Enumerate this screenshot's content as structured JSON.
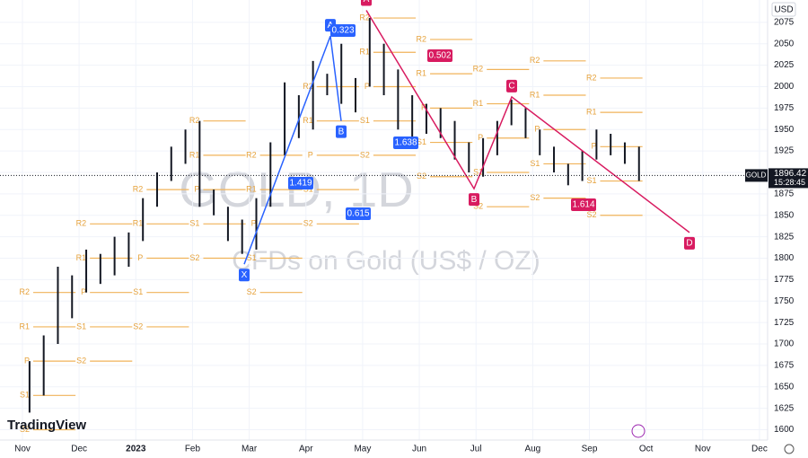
{
  "chart_data": {
    "type": "ohlc",
    "watermark": "GOLD, 1D",
    "watermark_subtitle": "CFDs on Gold (US$ / OZ)",
    "brand": "TradingView",
    "currency": "USD",
    "symbol": "GOLD",
    "last_price": 1896.42,
    "countdown": "15:28:45",
    "categories": [
      "Nov",
      "Dec",
      "2023",
      "Feb",
      "Mar",
      "Apr",
      "May",
      "Jun",
      "Jul",
      "Aug",
      "Sep",
      "Oct",
      "Nov",
      "Dec"
    ],
    "ylim": [
      1588,
      2101
    ],
    "yticks": [
      1600,
      1625,
      1650,
      1675,
      1700,
      1725,
      1750,
      1775,
      1800,
      1825,
      1850,
      1875,
      1900,
      1925,
      1950,
      1975,
      2000,
      2025,
      2050,
      2075
    ],
    "grid": true,
    "series": [
      {
        "name": "GOLD",
        "color": "#131722",
        "high": [
          1680,
          1710,
          1790,
          1780,
          1810,
          1805,
          1825,
          1830,
          1870,
          1900,
          1930,
          1950,
          1960,
          1880,
          1860,
          1845,
          1870,
          1935,
          2005,
          1990,
          2030,
          2015,
          2050,
          2010,
          2080,
          2050,
          2020,
          1990,
          1980,
          1975,
          1960,
          1935,
          1940,
          1960,
          1985,
          1975,
          1950,
          1930,
          1910,
          1925,
          1950,
          1945,
          1935,
          1930
        ],
        "low": [
          1620,
          1640,
          1700,
          1730,
          1760,
          1770,
          1780,
          1790,
          1820,
          1860,
          1890,
          1910,
          1860,
          1850,
          1820,
          1805,
          1810,
          1860,
          1920,
          1940,
          1950,
          1990,
          1980,
          1970,
          2000,
          1990,
          1950,
          1940,
          1945,
          1940,
          1915,
          1900,
          1895,
          1920,
          1955,
          1940,
          1920,
          1900,
          1885,
          1890,
          1915,
          1920,
          1910,
          1890
        ]
      }
    ],
    "pivots": [
      {
        "labels": [
          "R2",
          "R1",
          "P",
          "S1",
          "S2"
        ],
        "values": [
          1760,
          1720,
          1680,
          1640,
          1600
        ]
      },
      {
        "labels": [
          "R2",
          "R1",
          "P",
          "S1",
          "S2"
        ],
        "values": [
          1840,
          1800,
          1760,
          1720,
          1680
        ]
      },
      {
        "labels": [
          "R2",
          "R1",
          "P",
          "S1",
          "S2"
        ],
        "values": [
          1880,
          1840,
          1800,
          1760,
          1720
        ]
      },
      {
        "labels": [
          "R2",
          "R1",
          "P",
          "S1",
          "S2"
        ],
        "values": [
          1960,
          1920,
          1880,
          1840,
          1800
        ]
      },
      {
        "labels": [
          "R2",
          "R1",
          "P",
          "S1",
          "S2"
        ],
        "values": [
          1920,
          1880,
          1840,
          1800,
          1760
        ]
      },
      {
        "labels": [
          "R2",
          "R1",
          "P",
          "S1",
          "S2"
        ],
        "values": [
          2000,
          1960,
          1920,
          1880,
          1840
        ]
      },
      {
        "labels": [
          "R2",
          "R1",
          "P",
          "S1",
          "S2"
        ],
        "values": [
          2080,
          2040,
          2000,
          1960,
          1920
        ]
      },
      {
        "labels": [
          "R2",
          "R1",
          "P",
          "S1",
          "S2"
        ],
        "values": [
          2055,
          2015,
          1975,
          1935,
          1895
        ]
      },
      {
        "labels": [
          "R2",
          "R1",
          "P",
          "S1",
          "S2"
        ],
        "values": [
          2020,
          1980,
          1940,
          1900,
          1860
        ]
      },
      {
        "labels": [
          "R2",
          "R1",
          "P",
          "S1",
          "S2"
        ],
        "values": [
          2030,
          1990,
          1950,
          1910,
          1870
        ]
      },
      {
        "labels": [
          "R2",
          "R1",
          "P",
          "S1",
          "S2"
        ],
        "values": [
          2010,
          1970,
          1930,
          1890,
          1850
        ]
      }
    ],
    "patterns": [
      {
        "color": "#2962ff",
        "labels": [
          "X",
          "A",
          "B"
        ],
        "values": [
          1793,
          2059,
          1960
        ],
        "ratios": [
          "1.419",
          "0.323",
          "0.615",
          "1.638"
        ]
      },
      {
        "color": "#d81b60",
        "labels": [
          "A",
          "B",
          "C",
          "D"
        ],
        "values": [
          2089,
          1881,
          1988,
          1830
        ],
        "ratios": [
          "0.502",
          "1.614"
        ]
      }
    ]
  }
}
